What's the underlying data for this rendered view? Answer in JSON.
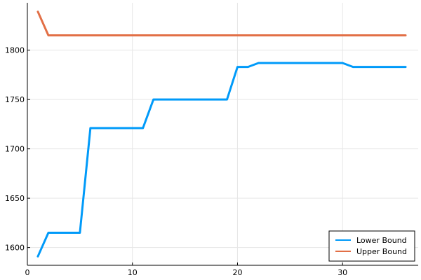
{
  "chart_data": {
    "type": "line",
    "x": [
      1,
      2,
      3,
      4,
      5,
      6,
      7,
      8,
      9,
      10,
      11,
      12,
      13,
      14,
      15,
      16,
      17,
      18,
      19,
      20,
      21,
      22,
      23,
      24,
      25,
      26,
      27,
      28,
      29,
      30,
      31,
      32,
      33,
      34,
      35,
      36
    ],
    "series": [
      {
        "name": "Lower Bound",
        "color": "#009af9",
        "values": [
          1591,
          1615,
          1615,
          1615,
          1615,
          1721,
          1721,
          1721,
          1721,
          1721,
          1721,
          1750,
          1750,
          1750,
          1750,
          1750,
          1750,
          1750,
          1750,
          1783,
          1783,
          1787,
          1787,
          1787,
          1787,
          1787,
          1787,
          1787,
          1787,
          1787,
          1783,
          1783,
          1783,
          1783,
          1783,
          1783
        ]
      },
      {
        "name": "Upper Bound",
        "color": "#e26f46",
        "values": [
          1839,
          1815,
          1815,
          1815,
          1815,
          1815,
          1815,
          1815,
          1815,
          1815,
          1815,
          1815,
          1815,
          1815,
          1815,
          1815,
          1815,
          1815,
          1815,
          1815,
          1815,
          1815,
          1815,
          1815,
          1815,
          1815,
          1815,
          1815,
          1815,
          1815,
          1815,
          1815,
          1815,
          1815,
          1815,
          1815
        ]
      }
    ],
    "title": "",
    "xlabel": "",
    "ylabel": "",
    "xlim": [
      0,
      37.2
    ],
    "ylim": [
      1582,
      1848
    ],
    "xticks": [
      0,
      10,
      20,
      30
    ],
    "yticks": [
      1600,
      1650,
      1700,
      1750,
      1800
    ],
    "grid": true,
    "legend_position": "bottom-right"
  }
}
